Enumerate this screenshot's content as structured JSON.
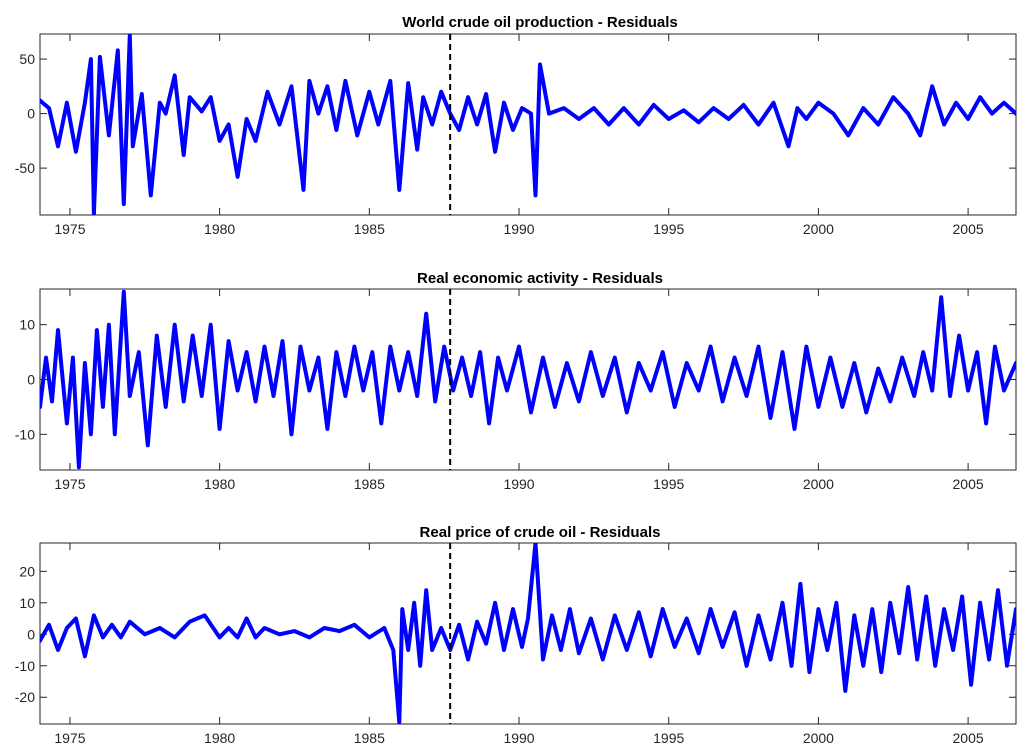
{
  "figure": {
    "background": "#ffffff",
    "line_color": "#0000ff"
  },
  "chart_data": [
    {
      "type": "line",
      "title": "World crude oil production - Residuals",
      "xlabel": "",
      "ylabel": "",
      "xlim": [
        1974.0,
        2006.6
      ],
      "ylim": [
        -93,
        73
      ],
      "xticks": [
        1975,
        1980,
        1985,
        1990,
        1995,
        2000,
        2005
      ],
      "yticks": [
        -50,
        0,
        50
      ],
      "ytick_labels": [
        "-50",
        "0",
        "50"
      ],
      "grid": false,
      "vline": {
        "x": 1987.7,
        "style": "dashed"
      },
      "series": [
        {
          "x": [
            1974.0,
            1974.3,
            1974.6,
            1974.9,
            1975.2,
            1975.5,
            1975.7,
            1975.8,
            1976.0,
            1976.3,
            1976.6,
            1976.8,
            1977.0,
            1977.1,
            1977.4,
            1977.7,
            1978.0,
            1978.2,
            1978.5,
            1978.8,
            1979.0,
            1979.4,
            1979.7,
            1980.0,
            1980.3,
            1980.6,
            1980.9,
            1981.2,
            1981.6,
            1982.0,
            1982.4,
            1982.8,
            1983.0,
            1983.3,
            1983.6,
            1983.9,
            1984.2,
            1984.6,
            1985.0,
            1985.3,
            1985.7,
            1986.0,
            1986.3,
            1986.6,
            1986.8,
            1987.1,
            1987.4,
            1987.7,
            1988.0,
            1988.3,
            1988.6,
            1988.9,
            1989.2,
            1989.5,
            1989.8,
            1990.1,
            1990.4,
            1990.55,
            1990.7,
            1991.0,
            1991.5,
            1992.0,
            1992.5,
            1993.0,
            1993.5,
            1994.0,
            1994.5,
            1995.0,
            1995.5,
            1996.0,
            1996.5,
            1997.0,
            1997.5,
            1998.0,
            1998.5,
            1999.0,
            1999.3,
            1999.6,
            2000.0,
            2000.5,
            2001.0,
            2001.5,
            2002.0,
            2002.5,
            2003.0,
            2003.4,
            2003.8,
            2004.2,
            2004.6,
            2005.0,
            2005.4,
            2005.8,
            2006.2,
            2006.6
          ],
          "values": [
            12,
            5,
            -30,
            10,
            -35,
            10,
            50,
            -92,
            52,
            -20,
            58,
            -83,
            72,
            -30,
            18,
            -75,
            10,
            0,
            35,
            -38,
            15,
            2,
            15,
            -25,
            -10,
            -58,
            -5,
            -25,
            20,
            -10,
            25,
            -70,
            30,
            0,
            25,
            -15,
            30,
            -20,
            20,
            -10,
            30,
            -70,
            28,
            -33,
            15,
            -10,
            20,
            0,
            -15,
            15,
            -10,
            18,
            -35,
            10,
            -15,
            5,
            0,
            -75,
            45,
            0,
            5,
            -5,
            5,
            -10,
            5,
            -10,
            8,
            -5,
            3,
            -8,
            5,
            -5,
            8,
            -10,
            10,
            -30,
            5,
            -5,
            10,
            0,
            -20,
            5,
            -10,
            15,
            0,
            -20,
            25,
            -10,
            10,
            -5,
            15,
            0,
            10,
            0
          ]
        }
      ]
    },
    {
      "type": "line",
      "title": "Real economic activity - Residuals",
      "xlabel": "",
      "ylabel": "",
      "xlim": [
        1974.0,
        2006.6
      ],
      "ylim": [
        -16.5,
        16.5
      ],
      "xticks": [
        1975,
        1980,
        1985,
        1990,
        1995,
        2000,
        2005
      ],
      "yticks": [
        -10,
        0,
        10
      ],
      "ytick_labels": [
        "-10",
        "0",
        "10"
      ],
      "grid": false,
      "vline": {
        "x": 1987.7,
        "style": "dashed"
      },
      "series": [
        {
          "x": [
            1974.0,
            1974.2,
            1974.4,
            1974.6,
            1974.9,
            1975.1,
            1975.3,
            1975.5,
            1975.7,
            1975.9,
            1976.1,
            1976.3,
            1976.5,
            1976.8,
            1977.0,
            1977.3,
            1977.6,
            1977.9,
            1978.2,
            1978.5,
            1978.8,
            1979.1,
            1979.4,
            1979.7,
            1980.0,
            1980.3,
            1980.6,
            1980.9,
            1981.2,
            1981.5,
            1981.8,
            1982.1,
            1982.4,
            1982.7,
            1983.0,
            1983.3,
            1983.6,
            1983.9,
            1984.2,
            1984.5,
            1984.8,
            1985.1,
            1985.4,
            1985.7,
            1986.0,
            1986.3,
            1986.6,
            1986.9,
            1987.2,
            1987.5,
            1987.8,
            1988.1,
            1988.4,
            1988.7,
            1989.0,
            1989.3,
            1989.6,
            1990.0,
            1990.4,
            1990.8,
            1991.2,
            1991.6,
            1992.0,
            1992.4,
            1992.8,
            1993.2,
            1993.6,
            1994.0,
            1994.4,
            1994.8,
            1995.2,
            1995.6,
            1996.0,
            1996.4,
            1996.8,
            1997.2,
            1997.6,
            1998.0,
            1998.4,
            1998.8,
            1999.2,
            1999.6,
            2000.0,
            2000.4,
            2000.8,
            2001.2,
            2001.6,
            2002.0,
            2002.4,
            2002.8,
            2003.2,
            2003.5,
            2003.8,
            2004.1,
            2004.4,
            2004.7,
            2005.0,
            2005.3,
            2005.6,
            2005.9,
            2006.2,
            2006.6
          ],
          "values": [
            -5,
            4,
            -4,
            9,
            -8,
            4,
            -16,
            3,
            -10,
            9,
            -5,
            10,
            -10,
            16,
            -3,
            5,
            -12,
            8,
            -5,
            10,
            -4,
            8,
            -3,
            10,
            -9,
            7,
            -2,
            5,
            -4,
            6,
            -3,
            7,
            -10,
            6,
            -2,
            4,
            -9,
            5,
            -3,
            6,
            -2,
            5,
            -8,
            6,
            -2,
            5,
            -3,
            12,
            -4,
            6,
            -2,
            4,
            -3,
            5,
            -8,
            4,
            -2,
            6,
            -6,
            4,
            -5,
            3,
            -4,
            5,
            -3,
            4,
            -6,
            3,
            -2,
            5,
            -5,
            3,
            -2,
            6,
            -4,
            4,
            -3,
            6,
            -7,
            5,
            -9,
            6,
            -5,
            4,
            -5,
            3,
            -6,
            2,
            -4,
            4,
            -3,
            5,
            -2,
            15,
            -3,
            8,
            -2,
            5,
            -8,
            6,
            -2,
            3
          ]
        }
      ]
    },
    {
      "type": "line",
      "title": "Real price of crude oil - Residuals",
      "xlabel": "",
      "ylabel": "",
      "xlim": [
        1974.0,
        2006.6
      ],
      "ylim": [
        -28.5,
        29
      ],
      "xticks": [
        1975,
        1980,
        1985,
        1990,
        1995,
        2000,
        2005
      ],
      "yticks": [
        -20,
        -10,
        0,
        10,
        20
      ],
      "ytick_labels": [
        "-20",
        "-10",
        "0",
        "10",
        "20"
      ],
      "grid": false,
      "vline": {
        "x": 1987.7,
        "style": "dashed"
      },
      "series": [
        {
          "x": [
            1974.0,
            1974.3,
            1974.6,
            1974.9,
            1975.2,
            1975.5,
            1975.8,
            1976.1,
            1976.4,
            1976.7,
            1977.0,
            1977.5,
            1978.0,
            1978.5,
            1979.0,
            1979.5,
            1980.0,
            1980.3,
            1980.6,
            1980.9,
            1981.2,
            1981.5,
            1982.0,
            1982.5,
            1983.0,
            1983.5,
            1984.0,
            1984.5,
            1985.0,
            1985.5,
            1985.8,
            1986.0,
            1986.1,
            1986.3,
            1986.5,
            1986.7,
            1986.9,
            1987.1,
            1987.4,
            1987.7,
            1988.0,
            1988.3,
            1988.6,
            1988.9,
            1989.2,
            1989.5,
            1989.8,
            1990.1,
            1990.3,
            1990.55,
            1990.8,
            1991.1,
            1991.4,
            1991.7,
            1992.0,
            1992.4,
            1992.8,
            1993.2,
            1993.6,
            1994.0,
            1994.4,
            1994.8,
            1995.2,
            1995.6,
            1996.0,
            1996.4,
            1996.8,
            1997.2,
            1997.6,
            1998.0,
            1998.4,
            1998.8,
            1999.1,
            1999.4,
            1999.7,
            2000.0,
            2000.3,
            2000.6,
            2000.9,
            2001.2,
            2001.5,
            2001.8,
            2002.1,
            2002.4,
            2002.7,
            2003.0,
            2003.3,
            2003.6,
            2003.9,
            2004.2,
            2004.5,
            2004.8,
            2005.1,
            2005.4,
            2005.7,
            2006.0,
            2006.3,
            2006.6
          ],
          "values": [
            -2,
            3,
            -5,
            2,
            5,
            -7,
            6,
            -1,
            3,
            -1,
            4,
            0,
            2,
            -1,
            4,
            6,
            -1,
            2,
            -1,
            5,
            -1,
            2,
            0,
            1,
            -1,
            2,
            1,
            3,
            -1,
            2,
            -5,
            -28,
            8,
            -5,
            10,
            -10,
            14,
            -5,
            2,
            -5,
            3,
            -8,
            4,
            -3,
            10,
            -5,
            8,
            -4,
            5,
            29,
            -8,
            6,
            -5,
            8,
            -6,
            5,
            -8,
            6,
            -5,
            7,
            -7,
            8,
            -4,
            5,
            -6,
            8,
            -4,
            7,
            -10,
            6,
            -8,
            10,
            -10,
            16,
            -12,
            8,
            -5,
            10,
            -18,
            6,
            -10,
            8,
            -12,
            10,
            -6,
            15,
            -8,
            12,
            -10,
            8,
            -5,
            12,
            -16,
            10,
            -8,
            14,
            -10,
            8
          ]
        }
      ]
    }
  ]
}
